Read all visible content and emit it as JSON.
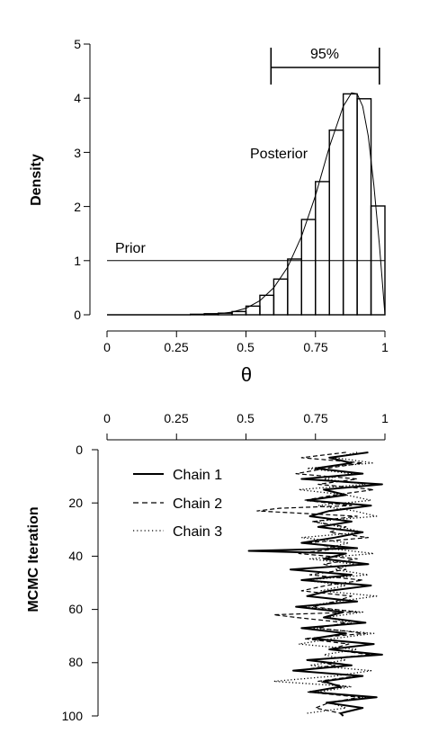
{
  "chart_data": [
    {
      "type": "line",
      "title": "",
      "xlabel": "θ",
      "ylabel": "Density",
      "xlim": [
        0,
        1
      ],
      "ylim": [
        0,
        5
      ],
      "x_ticks": [
        "0",
        "0.25",
        "0.5",
        "0.75",
        "1"
      ],
      "y_ticks": [
        "0",
        "1",
        "2",
        "3",
        "4",
        "5"
      ],
      "annotations": {
        "prior": "Prior",
        "posterior": "Posterior",
        "interval": "95%"
      },
      "credible_interval": [
        0.59,
        0.98
      ],
      "histogram": {
        "edges": [
          0,
          0.05,
          0.1,
          0.15,
          0.2,
          0.25,
          0.3,
          0.35,
          0.4,
          0.45,
          0.5,
          0.55,
          0.6,
          0.65,
          0.7,
          0.75,
          0.8,
          0.85,
          0.9,
          0.95,
          1.0
        ],
        "heights": [
          0,
          0,
          0,
          0,
          0,
          0,
          0.01,
          0.02,
          0.03,
          0.06,
          0.16,
          0.36,
          0.66,
          1.03,
          1.76,
          2.46,
          3.41,
          4.08,
          3.99,
          2.01
        ]
      },
      "posterior_density": {
        "x": [
          0.3,
          0.35,
          0.4,
          0.45,
          0.5,
          0.55,
          0.6,
          0.65,
          0.7,
          0.75,
          0.8,
          0.85,
          0.88,
          0.9,
          0.92,
          0.94,
          0.96,
          0.98,
          1.0
        ],
        "y": [
          0.0,
          0.01,
          0.02,
          0.05,
          0.12,
          0.26,
          0.5,
          0.88,
          1.45,
          2.2,
          3.1,
          3.85,
          4.1,
          4.08,
          3.85,
          3.3,
          2.4,
          1.3,
          0
        ]
      },
      "prior_density": {
        "x": [
          0,
          1
        ],
        "y": [
          1,
          1
        ]
      }
    },
    {
      "type": "line",
      "title": "",
      "xlabel": "",
      "ylabel": "MCMC Iteration",
      "xlim": [
        0,
        1
      ],
      "ylim": [
        100,
        0
      ],
      "x_ticks": [
        "0",
        "0.25",
        "0.5",
        "0.75",
        "1"
      ],
      "y_ticks": [
        "0",
        "20",
        "40",
        "60",
        "80",
        "100"
      ],
      "legend_position": "top-left",
      "series": [
        {
          "name": "Chain 1",
          "style": "solid",
          "iteration": [
            1,
            3,
            5,
            7,
            9,
            11,
            13,
            15,
            17,
            19,
            21,
            23,
            25,
            27,
            29,
            31,
            33,
            35,
            37,
            38,
            39,
            41,
            43,
            45,
            47,
            49,
            51,
            53,
            55,
            57,
            59,
            61,
            63,
            65,
            67,
            69,
            71,
            73,
            75,
            77,
            79,
            81,
            83,
            85,
            87,
            89,
            91,
            93,
            95,
            97,
            99,
            100
          ],
          "values": [
            0.94,
            0.8,
            0.88,
            0.75,
            0.92,
            0.7,
            0.99,
            0.78,
            0.86,
            0.72,
            0.95,
            0.8,
            0.73,
            0.88,
            0.76,
            0.92,
            0.82,
            0.7,
            0.9,
            0.51,
            0.86,
            0.78,
            0.94,
            0.66,
            0.88,
            0.7,
            0.95,
            0.8,
            0.72,
            0.9,
            0.68,
            0.85,
            0.78,
            0.93,
            0.7,
            0.86,
            0.74,
            0.96,
            0.8,
            0.99,
            0.72,
            0.88,
            0.67,
            0.92,
            0.78,
            0.84,
            0.73,
            0.97,
            0.79,
            0.92,
            0.84,
            0.85
          ]
        },
        {
          "name": "Chain 2",
          "style": "dashed",
          "iteration": [
            1,
            3,
            5,
            7,
            9,
            11,
            13,
            15,
            17,
            19,
            21,
            22,
            23,
            25,
            27,
            29,
            31,
            33,
            35,
            37,
            39,
            41,
            43,
            45,
            47,
            49,
            51,
            53,
            55,
            57,
            59,
            61,
            62,
            63,
            65,
            67,
            69,
            71,
            73,
            75,
            77,
            79,
            81,
            83,
            85,
            87,
            89,
            91,
            93,
            95,
            97,
            99
          ],
          "values": [
            0.86,
            0.7,
            0.92,
            0.79,
            0.68,
            0.9,
            0.76,
            0.96,
            0.82,
            0.71,
            0.88,
            0.62,
            0.54,
            0.9,
            0.74,
            0.86,
            0.8,
            0.94,
            0.72,
            0.84,
            0.69,
            0.9,
            0.78,
            0.86,
            0.73,
            0.92,
            0.79,
            0.7,
            0.88,
            0.82,
            0.74,
            0.9,
            0.6,
            0.68,
            0.86,
            0.76,
            0.93,
            0.71,
            0.87,
            0.8,
            0.95,
            0.74,
            0.82,
            0.68,
            0.9,
            0.76,
            0.86,
            0.72,
            0.91,
            0.8,
            0.75,
            0.84
          ]
        },
        {
          "name": "Chain 3",
          "style": "dotted",
          "iteration": [
            1,
            3,
            5,
            7,
            9,
            11,
            13,
            15,
            17,
            19,
            21,
            23,
            25,
            27,
            29,
            31,
            33,
            35,
            37,
            39,
            41,
            43,
            45,
            47,
            49,
            51,
            53,
            55,
            57,
            59,
            61,
            63,
            65,
            67,
            69,
            71,
            73,
            75,
            77,
            79,
            81,
            83,
            85,
            87,
            89,
            91,
            93,
            95,
            97,
            99
          ],
          "values": [
            0.9,
            0.82,
            0.96,
            0.72,
            0.88,
            0.78,
            0.93,
            0.69,
            0.86,
            0.95,
            0.76,
            0.89,
            0.97,
            0.74,
            0.84,
            0.92,
            0.7,
            0.87,
            0.79,
            0.96,
            0.73,
            0.89,
            0.82,
            0.94,
            0.71,
            0.86,
            0.77,
            0.97,
            0.83,
            0.7,
            0.92,
            0.79,
            0.88,
            0.74,
            0.96,
            0.81,
            0.69,
            0.9,
            0.78,
            0.86,
            0.73,
            0.95,
            0.82,
            0.6,
            0.88,
            0.76,
            0.93,
            0.8,
            0.86,
            0.72
          ]
        }
      ]
    }
  ]
}
